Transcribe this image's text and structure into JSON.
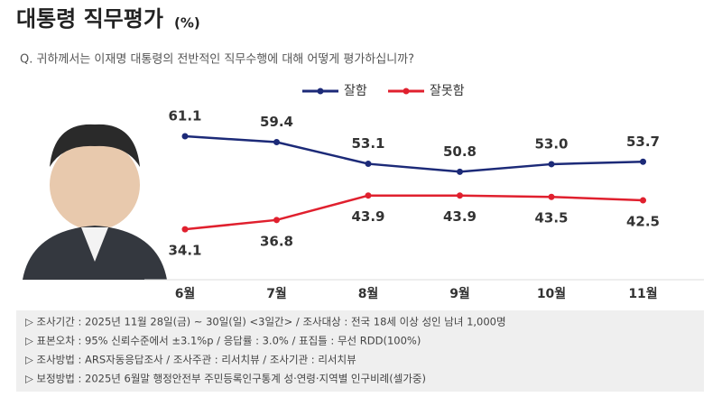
{
  "chart_data": {
    "type": "line",
    "title": "대통령 직무평가",
    "title_unit": "(%)",
    "subtitle": "Q. 귀하께서는 이재명 대통령의 전반적인 직무수행에 대해 어떻게 평가하십니까?",
    "categories": [
      "6월",
      "7월",
      "8월",
      "9월",
      "10월",
      "11월"
    ],
    "series": [
      {
        "name": "잘함",
        "color": "#1c2a78",
        "values": [
          61.1,
          59.4,
          53.1,
          50.8,
          53.0,
          53.7
        ],
        "value_labels": [
          "61.1",
          "59.4",
          "53.1",
          "50.8",
          "53.0",
          "53.7"
        ]
      },
      {
        "name": "잘못함",
        "color": "#e0202e",
        "values": [
          34.1,
          36.8,
          43.9,
          43.9,
          43.5,
          42.5
        ],
        "value_labels": [
          "34.1",
          "36.8",
          "43.9",
          "43.9",
          "43.5",
          "42.5"
        ]
      }
    ],
    "ylim": [
      20,
      70
    ],
    "grid": false,
    "legend": "top",
    "notes": [
      "▷ 조사기간 : 2025년 11월 28일(금) ~ 30일(일) <3일간> / 조사대상 : 전국 18세 이상 성인 남녀 1,000명",
      "▷ 표본오차 : 95% 신뢰수준에서 ±3.1%p / 응답률 : 3.0% / 표집틀 : 무선 RDD(100%)",
      "▷ 조사방법 : ARS자동응답조사 / 조사주관 : 리서치뷰 / 조사기관 : 리서치뷰",
      "▷ 보정방법 : 2025년 6월말 행정안전부 주민등록인구통계 성·연령·지역별 인구비례(셀가중)"
    ]
  }
}
